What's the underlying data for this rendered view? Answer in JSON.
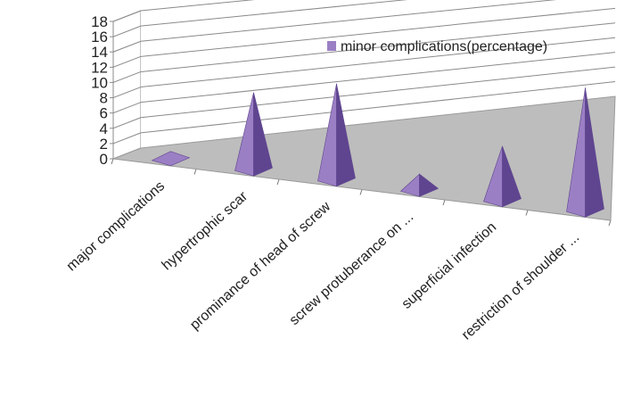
{
  "chart_data": {
    "type": "bar",
    "style": "3d-pyramid",
    "categories": [
      "major complications",
      "hypertrophic scar",
      "prominance of head of screw",
      "screw protuberance  on ...",
      "superficial infection",
      "restriction of shoulder ..."
    ],
    "series": [
      {
        "name": "minor complications(percentage)",
        "values": [
          0,
          10,
          12.5,
          2,
          7,
          16
        ]
      }
    ],
    "ylim": [
      0,
      18
    ],
    "yticks": [
      0,
      2,
      4,
      6,
      8,
      10,
      12,
      14,
      16,
      18
    ],
    "grid": true,
    "legend_position": "top-right",
    "colors": {
      "series": "#9b7fc4",
      "series_dark": "#5f4590",
      "series_light": "#b8a3dc",
      "grid": "#8a8a8a",
      "wall": "#ffffff",
      "floor": "#bdbdbd"
    }
  }
}
